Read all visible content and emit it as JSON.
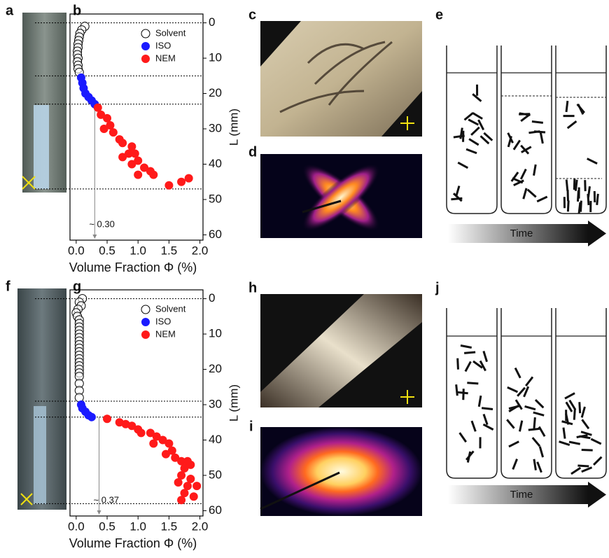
{
  "panels": {
    "labels": [
      "a",
      "b",
      "c",
      "d",
      "e",
      "f",
      "g",
      "h",
      "i",
      "j"
    ]
  },
  "time_labels": [
    "Time",
    "Time"
  ],
  "chart_data": [
    {
      "type": "scatter",
      "x_label": "Volume Fraction Φ (%)",
      "y_label": "L (mm)",
      "y_inverted": true,
      "xlim": [
        -0.1,
        2.05
      ],
      "ylim": [
        -2.5,
        61.5
      ],
      "xticks": [
        {
          "value": 0,
          "label": "0.0"
        },
        0.5,
        {
          "value": 1,
          "label": "1.0"
        },
        1.5,
        {
          "value": 2,
          "label": "2.0"
        }
      ],
      "yticks": [
        0,
        10,
        20,
        30,
        40,
        50,
        60
      ],
      "hlines": [
        0,
        15,
        23,
        47
      ],
      "annotation": {
        "text": "~ 0.30",
        "x": 0.3
      },
      "series": [
        {
          "name": "Solvent",
          "color": "#000000",
          "marker": "open",
          "x": [
            0.14,
            0.09,
            0.06,
            0.05,
            0.04,
            0.03,
            0.03,
            0.02,
            0.02,
            0.03,
            0.02,
            0.03,
            0.03,
            0.05
          ],
          "values": [
            1,
            2,
            3,
            4,
            5,
            6,
            7,
            8,
            9,
            10,
            11,
            12,
            13,
            14
          ]
        },
        {
          "name": "ISO",
          "color": "#1a1aff",
          "marker": "filled",
          "x": [
            0.08,
            0.1,
            0.12,
            0.15,
            0.2,
            0.25,
            0.3
          ],
          "values": [
            15.5,
            17,
            18.5,
            20,
            21,
            22,
            23
          ]
        },
        {
          "name": "NEM",
          "color": "#ff1a1a",
          "marker": "filled",
          "x": [
            0.35,
            0.4,
            0.5,
            0.55,
            0.45,
            0.6,
            0.7,
            0.75,
            0.9,
            0.85,
            0.95,
            0.75,
            1.0,
            0.9,
            1.1,
            1.2,
            1.0,
            1.25,
            1.5,
            1.7,
            1.82
          ],
          "values": [
            24,
            26,
            27,
            29,
            30,
            31,
            33,
            34,
            35,
            37,
            37,
            38,
            39,
            40,
            41,
            42,
            43,
            43,
            46,
            45,
            44
          ]
        }
      ]
    },
    {
      "type": "scatter",
      "x_label": "Volume Fraction Φ (%)",
      "y_label": "L (mm)",
      "y_inverted": true,
      "xlim": [
        -0.1,
        2.05
      ],
      "ylim": [
        -2.5,
        61.5
      ],
      "xticks": [
        {
          "value": 0,
          "label": "0.0"
        },
        0.5,
        {
          "value": 1,
          "label": "1.0"
        },
        1.5,
        {
          "value": 2,
          "label": "2.0"
        }
      ],
      "yticks": [
        0,
        10,
        20,
        30,
        40,
        50,
        60
      ],
      "hlines": [
        0,
        29,
        33.5,
        58
      ],
      "annotation": {
        "text": "~ 0.37",
        "x": 0.37
      },
      "series": [
        {
          "name": "Solvent",
          "color": "#000000",
          "marker": "open",
          "x": [
            0.1,
            0.05,
            0.08,
            0.03,
            0.0,
            0.02,
            0.05,
            0.05,
            0.05,
            0.05,
            0.05,
            0.05,
            0.05,
            0.05,
            0.05,
            0.05,
            0.05,
            0.05,
            0.05,
            0.05,
            0.05,
            0.05,
            0.05,
            0.05,
            0.05,
            0.05
          ],
          "values": [
            0,
            1,
            2,
            3,
            4,
            5,
            6,
            7,
            8,
            9,
            10,
            11,
            12,
            13,
            14,
            15,
            16,
            17,
            18,
            19,
            20,
            21,
            22,
            24,
            26,
            28
          ]
        },
        {
          "name": "ISO",
          "color": "#1a1aff",
          "marker": "filled",
          "x": [
            0.08,
            0.1,
            0.15,
            0.2,
            0.25
          ],
          "values": [
            30,
            31,
            32,
            33,
            33.5
          ]
        },
        {
          "name": "NEM",
          "color": "#ff1a1a",
          "marker": "filled",
          "x": [
            0.5,
            0.7,
            0.8,
            0.9,
            1.0,
            1.05,
            1.2,
            1.3,
            1.4,
            1.25,
            1.5,
            1.55,
            1.45,
            1.6,
            1.7,
            1.8,
            1.85,
            1.75,
            1.7,
            1.85,
            1.65,
            1.8,
            1.95,
            1.75,
            1.9,
            1.7
          ],
          "values": [
            34,
            35,
            35.5,
            36,
            37,
            38,
            38,
            39,
            40,
            41,
            41,
            43,
            44,
            45,
            46,
            46,
            47,
            48,
            50,
            51,
            52,
            53,
            53,
            55,
            56,
            57
          ]
        }
      ]
    }
  ]
}
